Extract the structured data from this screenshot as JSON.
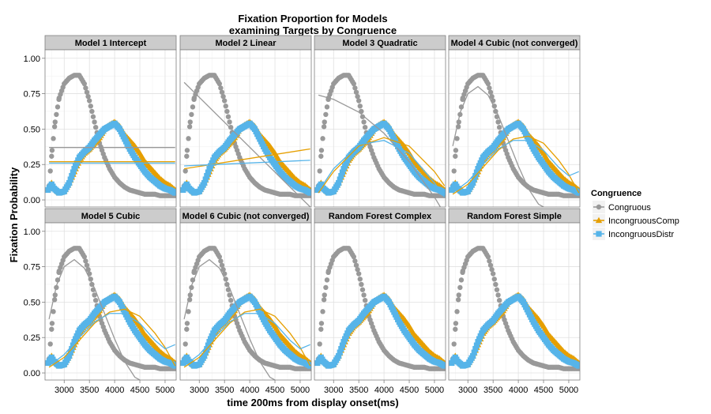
{
  "chart_data": {
    "type": "scatter",
    "title_lines": [
      "Fixation Proportion for Models",
      "examining Targets by Congruence"
    ],
    "xlabel": "time 200ms from display onset(ms)",
    "ylabel": "Fixation Probability",
    "xlim": [
      2620,
      5220
    ],
    "ylim": [
      -0.05,
      1.06
    ],
    "x_ticks": [
      3000,
      3500,
      4000,
      4500,
      5000
    ],
    "y_ticks": [
      0.0,
      0.25,
      0.5,
      0.75,
      1.0
    ],
    "y_tick_labels": [
      "0.00",
      "0.25",
      "0.50",
      "0.75",
      "1.00"
    ],
    "grid": true,
    "legend": {
      "title": "Congruence",
      "position": "right",
      "entries": [
        "Congruous",
        "IncongruousComp",
        "IncongruousDistr"
      ]
    },
    "colors": {
      "Congruous": "#999999",
      "IncongruousComp": "#E69F00",
      "IncongruousDistr": "#56B4E9"
    },
    "observed_series": [
      {
        "name": "Congruous",
        "marker": "circle",
        "x": [
          2700,
          2760,
          2820,
          2900,
          3000,
          3100,
          3200,
          3300,
          3400,
          3500,
          3600,
          3700,
          3800,
          3900,
          4000,
          4100,
          4200,
          4300,
          4400,
          4500,
          4600,
          4700,
          4800,
          4900,
          5000,
          5100,
          5200
        ],
        "values": [
          0.1,
          0.35,
          0.55,
          0.72,
          0.82,
          0.86,
          0.88,
          0.88,
          0.82,
          0.7,
          0.55,
          0.4,
          0.3,
          0.22,
          0.16,
          0.12,
          0.09,
          0.07,
          0.06,
          0.05,
          0.04,
          0.04,
          0.04,
          0.03,
          0.03,
          0.03,
          0.03
        ]
      },
      {
        "name": "IncongruousComp",
        "marker": "triangle",
        "x": [
          2680,
          2750,
          2800,
          2900,
          3000,
          3100,
          3200,
          3300,
          3400,
          3500,
          3600,
          3700,
          3800,
          3900,
          4000,
          4100,
          4200,
          4300,
          4400,
          4500,
          4600,
          4700,
          4800,
          4900,
          5000,
          5100,
          5200
        ],
        "values": [
          0.08,
          0.12,
          0.09,
          0.05,
          0.06,
          0.12,
          0.2,
          0.28,
          0.33,
          0.36,
          0.4,
          0.44,
          0.5,
          0.53,
          0.55,
          0.52,
          0.46,
          0.42,
          0.38,
          0.33,
          0.27,
          0.23,
          0.19,
          0.15,
          0.12,
          0.1,
          0.07
        ]
      },
      {
        "name": "IncongruousDistr",
        "marker": "square",
        "x": [
          2680,
          2750,
          2800,
          2900,
          3000,
          3100,
          3200,
          3300,
          3400,
          3500,
          3600,
          3700,
          3800,
          3900,
          4000,
          4100,
          4200,
          4300,
          4400,
          4500,
          4600,
          4700,
          4800,
          4900,
          5000,
          5100,
          5200
        ],
        "values": [
          0.07,
          0.11,
          0.08,
          0.05,
          0.06,
          0.12,
          0.22,
          0.3,
          0.34,
          0.37,
          0.42,
          0.46,
          0.5,
          0.52,
          0.54,
          0.5,
          0.43,
          0.36,
          0.3,
          0.25,
          0.2,
          0.16,
          0.13,
          0.1,
          0.08,
          0.07,
          0.05
        ]
      }
    ],
    "panels": [
      {
        "title": "Model 1 Intercept",
        "fits": [
          {
            "series": "Congruous",
            "x": [
              2700,
              5200
            ],
            "values": [
              0.37,
              0.37
            ]
          },
          {
            "series": "IncongruousComp",
            "x": [
              2700,
              5200
            ],
            "values": [
              0.27,
              0.27
            ]
          },
          {
            "series": "IncongruousDistr",
            "x": [
              2700,
              5200
            ],
            "values": [
              0.26,
              0.26
            ]
          }
        ]
      },
      {
        "title": "Model 2 Linear",
        "fits": [
          {
            "series": "Congruous",
            "x": [
              2700,
              5200
            ],
            "values": [
              0.83,
              -0.05
            ]
          },
          {
            "series": "IncongruousComp",
            "x": [
              2700,
              5200
            ],
            "values": [
              0.22,
              0.36
            ]
          },
          {
            "series": "IncongruousDistr",
            "x": [
              2700,
              5200
            ],
            "values": [
              0.24,
              0.28
            ]
          }
        ]
      },
      {
        "title": "Model 3 Quadratic",
        "fits": [
          {
            "series": "Congruous",
            "x": [
              2700,
              3000,
              3500,
              4000,
              4500,
              5000,
              5200
            ],
            "values": [
              0.74,
              0.71,
              0.62,
              0.47,
              0.27,
              0.02,
              -0.1
            ]
          },
          {
            "series": "IncongruousComp",
            "x": [
              2700,
              3000,
              3500,
              4000,
              4500,
              5000,
              5200
            ],
            "values": [
              0.05,
              0.2,
              0.38,
              0.44,
              0.38,
              0.2,
              0.1
            ]
          },
          {
            "series": "IncongruousDistr",
            "x": [
              2700,
              3000,
              3500,
              4000,
              4500,
              5000,
              5200
            ],
            "values": [
              0.06,
              0.22,
              0.39,
              0.42,
              0.33,
              0.12,
              0.02
            ]
          }
        ]
      },
      {
        "title": "Model 4 Cubic (not converged)",
        "fits": [
          {
            "series": "Congruous",
            "x": [
              2700,
              2850,
              3000,
              3200,
              3400,
              3600,
              3800,
              4000,
              4200,
              4400,
              4500
            ],
            "values": [
              0.38,
              0.62,
              0.75,
              0.8,
              0.74,
              0.6,
              0.42,
              0.24,
              0.08,
              -0.03,
              -0.05
            ]
          },
          {
            "series": "IncongruousComp",
            "x": [
              2700,
              3000,
              3300,
              3600,
              3900,
              4200,
              4500,
              4800,
              5000,
              5200
            ],
            "values": [
              0.04,
              0.11,
              0.23,
              0.35,
              0.43,
              0.45,
              0.4,
              0.28,
              0.18,
              0.05
            ]
          },
          {
            "series": "IncongruousDistr",
            "x": [
              2700,
              3000,
              3300,
              3600,
              3900,
              4200,
              4500,
              4800,
              5000,
              5200
            ],
            "values": [
              0.05,
              0.13,
              0.25,
              0.36,
              0.42,
              0.42,
              0.35,
              0.23,
              0.17,
              0.2
            ]
          }
        ]
      },
      {
        "title": "Model 5 Cubic",
        "fits": [
          {
            "series": "Congruous",
            "x": [
              2700,
              2850,
              3000,
              3200,
              3400,
              3600,
              3800,
              4000,
              4200,
              4400,
              4500
            ],
            "values": [
              0.38,
              0.62,
              0.75,
              0.8,
              0.74,
              0.6,
              0.42,
              0.24,
              0.08,
              -0.03,
              -0.05
            ]
          },
          {
            "series": "IncongruousComp",
            "x": [
              2700,
              3000,
              3300,
              3600,
              3900,
              4200,
              4500,
              4800,
              5000,
              5200
            ],
            "values": [
              0.04,
              0.11,
              0.23,
              0.35,
              0.43,
              0.45,
              0.4,
              0.28,
              0.18,
              0.05
            ]
          },
          {
            "series": "IncongruousDistr",
            "x": [
              2700,
              3000,
              3300,
              3600,
              3900,
              4200,
              4500,
              4800,
              5000,
              5200
            ],
            "values": [
              0.05,
              0.13,
              0.25,
              0.36,
              0.42,
              0.42,
              0.35,
              0.23,
              0.17,
              0.2
            ]
          }
        ]
      },
      {
        "title": "Model 6 Cubic (not converged)",
        "fits": [
          {
            "series": "Congruous",
            "x": [
              2700,
              2850,
              3000,
              3200,
              3400,
              3600,
              3800,
              4000,
              4200,
              4400,
              4500
            ],
            "values": [
              0.38,
              0.62,
              0.75,
              0.8,
              0.74,
              0.6,
              0.42,
              0.24,
              0.08,
              -0.03,
              -0.05
            ]
          },
          {
            "series": "IncongruousComp",
            "x": [
              2700,
              3000,
              3300,
              3600,
              3900,
              4200,
              4500,
              4800,
              5000,
              5200
            ],
            "values": [
              0.04,
              0.11,
              0.23,
              0.35,
              0.43,
              0.45,
              0.4,
              0.28,
              0.18,
              0.05
            ]
          },
          {
            "series": "IncongruousDistr",
            "x": [
              2700,
              3000,
              3300,
              3600,
              3900,
              4200,
              4500,
              4800,
              5000,
              5200
            ],
            "values": [
              0.05,
              0.13,
              0.25,
              0.36,
              0.42,
              0.42,
              0.35,
              0.23,
              0.17,
              0.2
            ]
          }
        ]
      },
      {
        "title": "Random Forest Complex",
        "fits": []
      },
      {
        "title": "Random Forest Simple",
        "fits": []
      }
    ]
  }
}
